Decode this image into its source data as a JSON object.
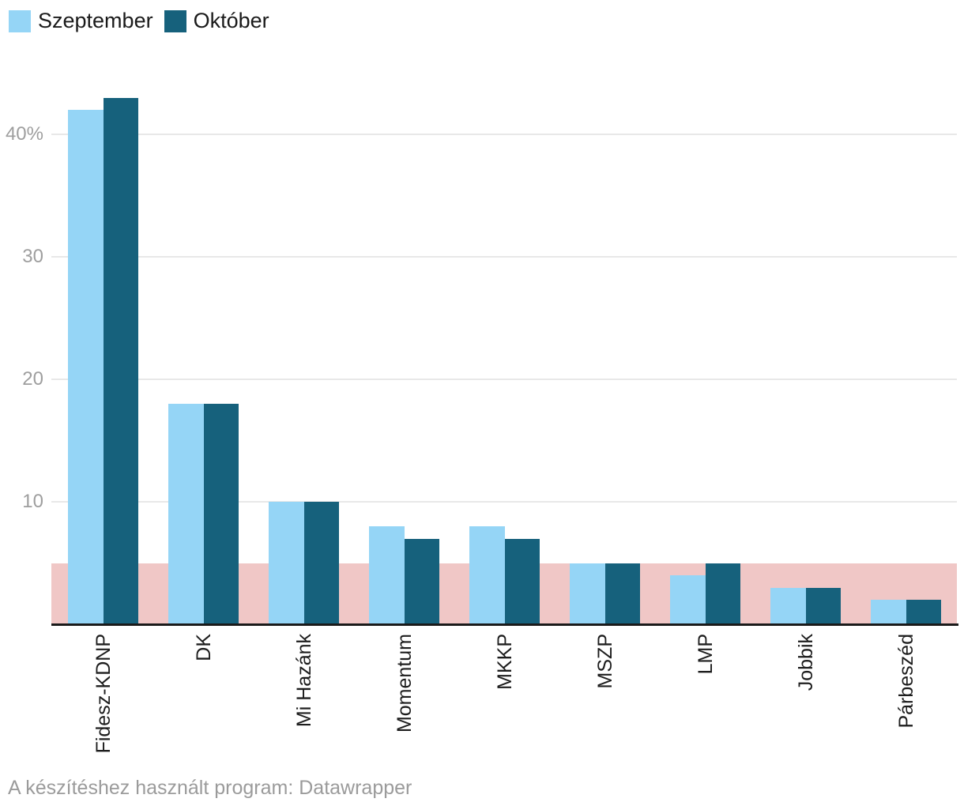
{
  "legend": {
    "position": "top-left",
    "items": [
      {
        "label": "Szeptember",
        "color": "#95d5f6"
      },
      {
        "label": "Október",
        "color": "#16617c"
      }
    ]
  },
  "chart_data": {
    "type": "bar",
    "categories": [
      "Fidesz-KDNP",
      "DK",
      "Mi Hazánk",
      "Momentum",
      "MKKP",
      "MSZP",
      "LMP",
      "Jobbik",
      "Párbeszéd"
    ],
    "series": [
      {
        "name": "Szeptember",
        "color": "#95d5f6",
        "values": [
          42,
          18,
          10,
          8,
          8,
          5,
          4,
          3,
          2
        ]
      },
      {
        "name": "Október",
        "color": "#16617c",
        "values": [
          43,
          18,
          10,
          7,
          7,
          5,
          5,
          3,
          2
        ]
      }
    ],
    "title": "",
    "xlabel": "",
    "ylabel": "",
    "ylim": [
      0,
      45
    ],
    "yticks": [
      {
        "value": 10,
        "label": "10"
      },
      {
        "value": 20,
        "label": "20"
      },
      {
        "value": 30,
        "label": "30"
      },
      {
        "value": 40,
        "label": "40%"
      }
    ],
    "grid": "horizontal",
    "legend_position": "top-left",
    "threshold_band": {
      "from": 0,
      "to": 5,
      "color": "#f0c7c6"
    },
    "colors": {
      "gridline": "#e8e8e8",
      "axis_line": "#1a1a1a",
      "y_tick_text": "#9e9e9e",
      "x_tick_text": "#1d1d1d"
    }
  },
  "footer": {
    "text": "A készítéshez használt program: Datawrapper"
  }
}
